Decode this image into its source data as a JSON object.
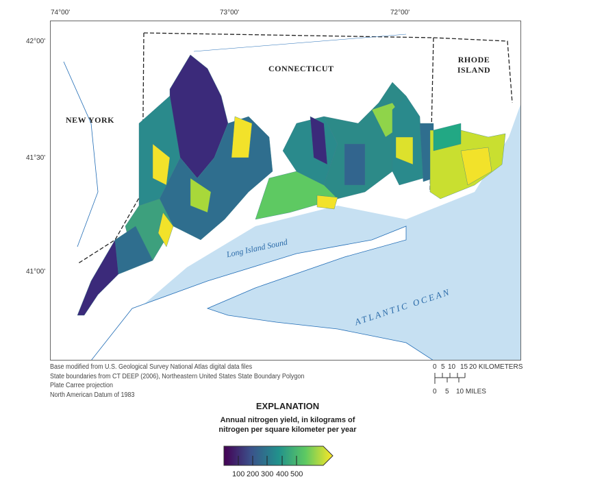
{
  "map": {
    "longitude_labels": [
      "74°00'",
      "73°00'",
      "72°00'"
    ],
    "latitude_labels": [
      "42°00'",
      "41°30'",
      "41°00'"
    ],
    "state_labels": [
      "NEW YORK",
      "CONNECTICUT",
      "RHODE ISLAND"
    ],
    "water_labels": [
      "Long Island Sound",
      "ATLANTIC OCEAN"
    ],
    "colors": {
      "water": "#c6e0f2",
      "rivers": "#1f6bb5",
      "land": "#ffffff"
    }
  },
  "credits": [
    "Base modified from U.S. Geological Survey National Atlas digital data files",
    "State boundaries from CT DEEP (2006), Northeastern United States State Boundary Polygon",
    "Plate Carree projection",
    "North American Datum of 1983"
  ],
  "scale_bar": {
    "km_labels": [
      "0",
      "5",
      "10",
      "15",
      "20 KILOMETERS"
    ],
    "mile_labels": [
      "0",
      "5",
      "10 MILES"
    ]
  },
  "legend": {
    "title": "EXPLANATION",
    "subtitle_line1": "Annual nitrogen yield, in kilograms of",
    "subtitle_line2": "nitrogen per square kilometer per year",
    "ticks": [
      "100",
      "200",
      "300",
      "400",
      "500"
    ],
    "colormap": "viridis",
    "colors": [
      "#440154",
      "#3b528b",
      "#21918c",
      "#5ec962",
      "#fde725"
    ]
  }
}
